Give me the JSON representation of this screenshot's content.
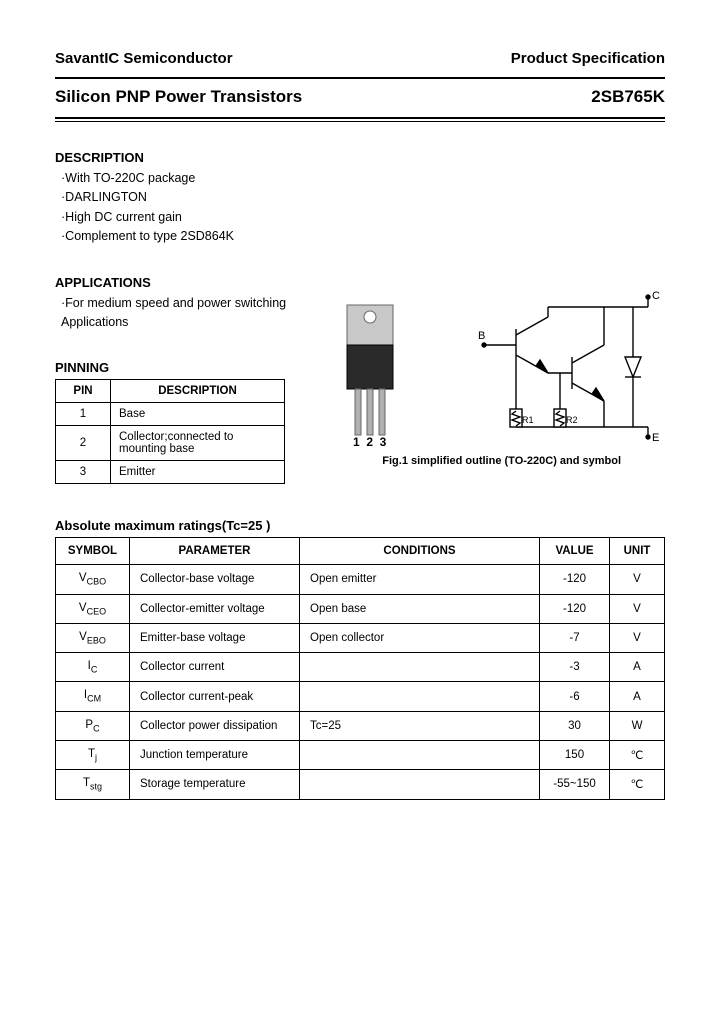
{
  "header": {
    "company": "SavantIC Semiconductor",
    "doc_type": "Product Specification"
  },
  "title": {
    "product_family": "Silicon PNP Power Transistors",
    "part_number": "2SB765K"
  },
  "description": {
    "heading": "DESCRIPTION",
    "items": [
      "·With TO-220C package",
      "·DARLINGTON",
      "·High DC current gain",
      "·Complement to type 2SD864K"
    ]
  },
  "applications": {
    "heading": "APPLICATIONS",
    "items": [
      "·For medium speed and power switching",
      "  Applications"
    ]
  },
  "pinning": {
    "heading": "PINNING",
    "col_pin": "PIN",
    "col_desc": "DESCRIPTION",
    "rows": [
      {
        "pin": "1",
        "desc": "Base"
      },
      {
        "pin": "2",
        "desc": "Collector;connected to mounting base"
      },
      {
        "pin": "3",
        "desc": "Emitter"
      }
    ]
  },
  "figure": {
    "caption": "Fig.1 simplified outline (TO-220C) and symbol",
    "pin_labels": "1  2  3",
    "terminals": {
      "b": "B",
      "c": "C",
      "e": "E"
    },
    "resistors": {
      "r1": "R1",
      "r2": "R2"
    },
    "colors": {
      "package_body": "#2a2a2a",
      "package_tab": "#c8c8c8",
      "lead": "#b0b0b0",
      "stroke": "#000000"
    }
  },
  "ratings": {
    "heading": "Absolute maximum ratings(Tc=25 )",
    "cols": {
      "symbol": "SYMBOL",
      "parameter": "PARAMETER",
      "conditions": "CONDITIONS",
      "value": "VALUE",
      "unit": "UNIT"
    },
    "rows": [
      {
        "symbol": "V",
        "sub": "CBO",
        "parameter": "Collector-base voltage",
        "conditions": "Open emitter",
        "value": "-120",
        "unit": "V"
      },
      {
        "symbol": "V",
        "sub": "CEO",
        "parameter": "Collector-emitter voltage",
        "conditions": "Open base",
        "value": "-120",
        "unit": "V"
      },
      {
        "symbol": "V",
        "sub": "EBO",
        "parameter": "Emitter-base voltage",
        "conditions": "Open collector",
        "value": "-7",
        "unit": "V"
      },
      {
        "symbol": "I",
        "sub": "C",
        "parameter": "Collector current",
        "conditions": "",
        "value": "-3",
        "unit": "A"
      },
      {
        "symbol": "I",
        "sub": "CM",
        "parameter": "Collector current-peak",
        "conditions": "",
        "value": "-6",
        "unit": "A"
      },
      {
        "symbol": "P",
        "sub": "C",
        "parameter": "Collector power dissipation",
        "conditions": "Tc=25 ",
        "value": "30",
        "unit": "W"
      },
      {
        "symbol": "T",
        "sub": "j",
        "parameter": "Junction temperature",
        "conditions": "",
        "value": "150",
        "unit": "℃"
      },
      {
        "symbol": "T",
        "sub": "stg",
        "parameter": "Storage temperature",
        "conditions": "",
        "value": "-55~150",
        "unit": "℃"
      }
    ]
  }
}
